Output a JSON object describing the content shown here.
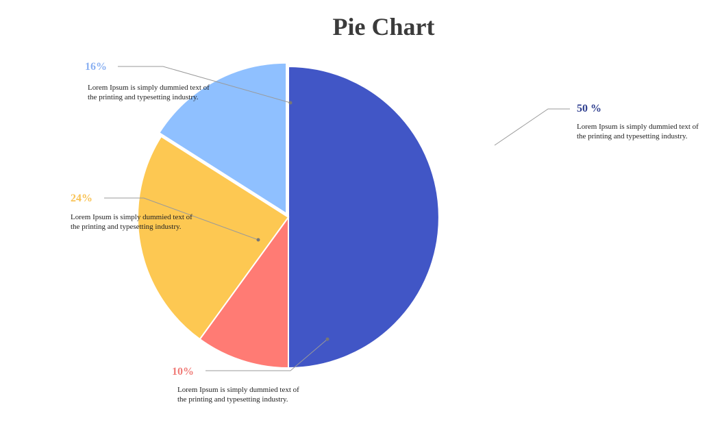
{
  "title": "Pie Chart",
  "chart_data": {
    "type": "pie",
    "title": "Pie Chart",
    "slices": [
      {
        "label": "50 %",
        "value": 50,
        "color": "#4156C6",
        "text": "Lorem Ipsum is simply dummied text of the printing and typesetting industry."
      },
      {
        "label": "10%",
        "value": 10,
        "color": "#FF7B74",
        "text": "Lorem Ipsum is simply dummied text of the printing and typesetting industry."
      },
      {
        "label": "24%",
        "value": 24,
        "color": "#FDC852",
        "text": "Lorem Ipsum is simply dummied text of the printing and typesetting industry."
      },
      {
        "label": "16%",
        "value": 16,
        "color": "#8FC0FF",
        "text": "Lorem Ipsum is simply dummied text of the printing and typesetting industry."
      }
    ]
  },
  "label_colors": {
    "s0": "#2F3F8F",
    "s1": "#F07C78",
    "s2": "#F8C356",
    "s3": "#8AB0F2"
  }
}
